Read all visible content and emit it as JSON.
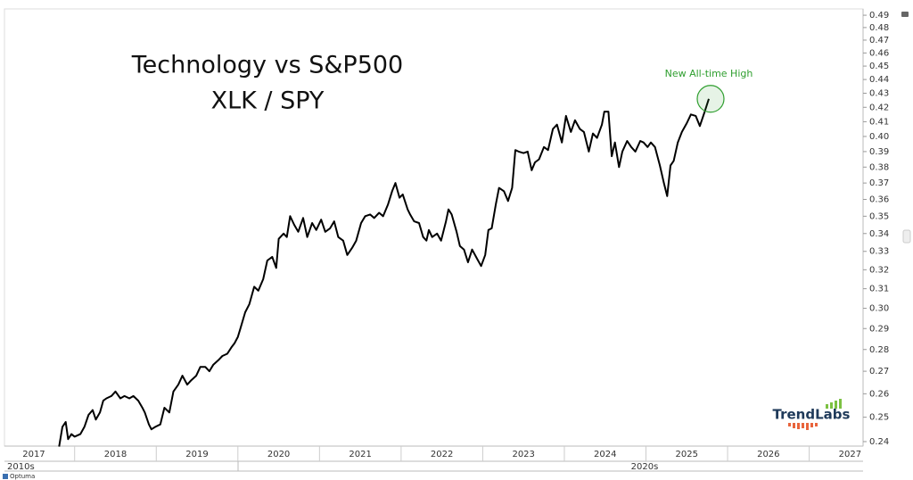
{
  "chart_data": {
    "type": "line",
    "title": "Technology vs S&P500",
    "subtitle": "XLK / SPY",
    "annotation": "New All-time High",
    "brand": "TrendLabs",
    "platform": "Optuma",
    "decades": [
      "2010s",
      "2020s"
    ],
    "log_scale": true,
    "grid": false,
    "x": [
      2017.81,
      2017.85,
      2017.89,
      2017.92,
      2017.96,
      2018.0,
      2018.07,
      2018.12,
      2018.17,
      2018.22,
      2018.26,
      2018.31,
      2018.35,
      2018.39,
      2018.45,
      2018.5,
      2018.56,
      2018.61,
      2018.67,
      2018.72,
      2018.78,
      2018.83,
      2018.86,
      2018.91,
      2018.94,
      2018.99,
      2019.05,
      2019.1,
      2019.16,
      2019.21,
      2019.27,
      2019.32,
      2019.38,
      2019.43,
      2019.49,
      2019.54,
      2019.6,
      2019.65,
      2019.7,
      2019.76,
      2019.81,
      2019.87,
      2019.92,
      2019.96,
      2020.0,
      2020.03,
      2020.09,
      2020.14,
      2020.2,
      2020.25,
      2020.31,
      2020.36,
      2020.42,
      2020.47,
      2020.5,
      2020.56,
      2020.6,
      2020.64,
      2020.69,
      2020.74,
      2020.8,
      2020.85,
      2020.91,
      2020.96,
      2021.02,
      2021.07,
      2021.13,
      2021.18,
      2021.23,
      2021.29,
      2021.34,
      2021.4,
      2021.45,
      2021.51,
      2021.56,
      2021.62,
      2021.67,
      2021.73,
      2021.78,
      2021.84,
      2021.89,
      2021.93,
      2021.98,
      2022.02,
      2022.08,
      2022.11,
      2022.16,
      2022.22,
      2022.27,
      2022.31,
      2022.34,
      2022.38,
      2022.44,
      2022.49,
      2022.55,
      2022.58,
      2022.62,
      2022.68,
      2022.72,
      2022.77,
      2022.82,
      2022.87,
      2022.93,
      2022.98,
      2023.03,
      2023.07,
      2023.11,
      2023.16,
      2023.2,
      2023.26,
      2023.31,
      2023.36,
      2023.4,
      2023.44,
      2023.5,
      2023.55,
      2023.6,
      2023.64,
      2023.69,
      2023.75,
      2023.8,
      2023.86,
      2023.91,
      2023.97,
      2024.02,
      2024.08,
      2024.13,
      2024.19,
      2024.24,
      2024.3,
      2024.35,
      2024.4,
      2024.46,
      2024.49,
      2024.54,
      2024.58,
      2024.62,
      2024.67,
      2024.71,
      2024.77,
      2024.82,
      2024.87,
      2024.93,
      2024.97,
      2025.02,
      2025.06,
      2025.11,
      2025.17,
      2025.22,
      2025.26,
      2025.3,
      2025.34,
      2025.39,
      2025.44,
      2025.5,
      2025.55,
      2025.61,
      2025.66,
      2025.72,
      2025.77
    ],
    "series": [
      {
        "name": "XLK / SPY",
        "color": "#000000",
        "values": [
          0.238,
          0.246,
          0.248,
          0.241,
          0.243,
          0.242,
          0.243,
          0.246,
          0.251,
          0.253,
          0.249,
          0.252,
          0.257,
          0.258,
          0.259,
          0.261,
          0.258,
          0.259,
          0.258,
          0.259,
          0.257,
          0.254,
          0.252,
          0.247,
          0.245,
          0.246,
          0.247,
          0.254,
          0.252,
          0.261,
          0.264,
          0.268,
          0.264,
          0.266,
          0.268,
          0.272,
          0.272,
          0.27,
          0.273,
          0.275,
          0.277,
          0.278,
          0.281,
          0.283,
          0.286,
          0.29,
          0.298,
          0.302,
          0.311,
          0.309,
          0.315,
          0.325,
          0.327,
          0.321,
          0.337,
          0.34,
          0.338,
          0.35,
          0.345,
          0.341,
          0.349,
          0.338,
          0.346,
          0.342,
          0.348,
          0.341,
          0.343,
          0.347,
          0.338,
          0.336,
          0.328,
          0.332,
          0.336,
          0.346,
          0.35,
          0.351,
          0.349,
          0.352,
          0.35,
          0.357,
          0.365,
          0.37,
          0.361,
          0.363,
          0.354,
          0.351,
          0.347,
          0.346,
          0.338,
          0.336,
          0.342,
          0.338,
          0.34,
          0.336,
          0.347,
          0.354,
          0.351,
          0.341,
          0.333,
          0.331,
          0.324,
          0.331,
          0.326,
          0.322,
          0.328,
          0.342,
          0.343,
          0.357,
          0.367,
          0.365,
          0.359,
          0.367,
          0.391,
          0.39,
          0.389,
          0.39,
          0.378,
          0.383,
          0.385,
          0.393,
          0.391,
          0.405,
          0.408,
          0.396,
          0.414,
          0.403,
          0.411,
          0.405,
          0.403,
          0.39,
          0.402,
          0.399,
          0.408,
          0.417,
          0.417,
          0.387,
          0.396,
          0.38,
          0.39,
          0.397,
          0.393,
          0.39,
          0.397,
          0.396,
          0.393,
          0.396,
          0.393,
          0.381,
          0.37,
          0.362,
          0.381,
          0.384,
          0.396,
          0.403,
          0.409,
          0.415,
          0.414,
          0.407,
          0.417,
          0.426
        ]
      }
    ],
    "xlim": [
      2017.14,
      2027.66
    ],
    "xticks": [
      2017,
      2018,
      2019,
      2020,
      2021,
      2022,
      2023,
      2024,
      2025,
      2026,
      2027
    ],
    "ylim": [
      0.2382,
      0.4952
    ],
    "yticks": [
      0.24,
      0.25,
      0.26,
      0.27,
      0.28,
      0.29,
      {
        "value": 0.3,
        "label": "0.30"
      },
      0.31,
      0.32,
      0.33,
      0.34,
      0.35,
      0.36,
      0.37,
      0.38,
      0.39,
      {
        "value": 0.4,
        "label": "0.40"
      },
      0.41,
      0.42,
      0.43,
      0.44,
      0.45,
      0.46,
      0.47,
      0.48,
      0.49
    ],
    "annotation_color": "#2e9e2e"
  }
}
